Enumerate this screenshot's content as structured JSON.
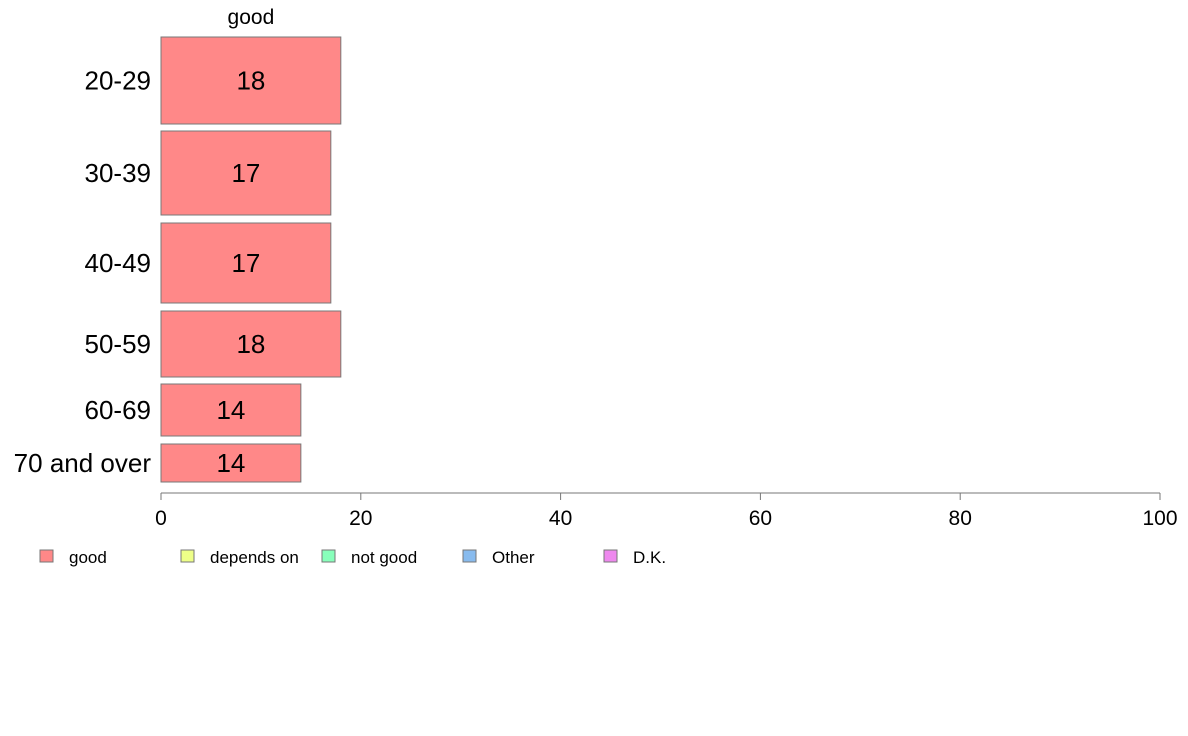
{
  "chart_data": {
    "type": "bar",
    "orientation": "horizontal",
    "stacked": true,
    "categories": [
      "20-29",
      "30-39",
      "40-49",
      "50-59",
      "60-69",
      "70 and over"
    ],
    "series": [
      {
        "name": "good",
        "color": "#ff8888",
        "values": [
          18,
          17,
          17,
          18,
          14,
          14
        ]
      }
    ],
    "value_labels": [
      "18",
      "17",
      "17",
      "18",
      "14",
      "14"
    ],
    "xlim": [
      0,
      100
    ],
    "xticks": [
      0,
      20,
      40,
      60,
      80,
      100
    ],
    "grid": false,
    "legend": {
      "position": "bottom-left",
      "entries": [
        {
          "label": "good",
          "color": "#ff8888"
        },
        {
          "label": "depends on",
          "color": "#eeff88"
        },
        {
          "label": "not good",
          "color": "#88ffbb"
        },
        {
          "label": "Other",
          "color": "#88bbee"
        },
        {
          "label": "D.K.",
          "color": "#ee88ee"
        }
      ]
    }
  }
}
